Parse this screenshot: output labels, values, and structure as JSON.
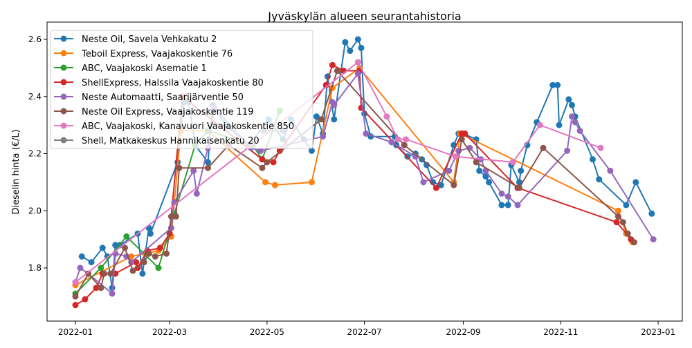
{
  "chart_data": {
    "type": "line",
    "title": "Jyväskylän alueen seurantahistoria",
    "xlabel": "",
    "ylabel": "Dieselin hinta (€/L)",
    "x_unit": "days since 2022-01-01",
    "xlim": [
      -18,
      380
    ],
    "ylim": [
      1.614,
      2.66
    ],
    "x_ticks": [
      {
        "value": 0,
        "label": "2022-01"
      },
      {
        "value": 59,
        "label": "2022-03"
      },
      {
        "value": 120,
        "label": "2022-05"
      },
      {
        "value": 181,
        "label": "2022-07"
      },
      {
        "value": 243,
        "label": "2022-09"
      },
      {
        "value": 304,
        "label": "2022-11"
      },
      {
        "value": 365,
        "label": "2023-01"
      }
    ],
    "y_ticks": [
      {
        "value": 1.8,
        "label": "1.8"
      },
      {
        "value": 2.0,
        "label": "2.0"
      },
      {
        "value": 2.2,
        "label": "2.2"
      },
      {
        "value": 2.4,
        "label": "2.4"
      },
      {
        "value": 2.6,
        "label": "2.6"
      }
    ],
    "grid": false,
    "legend_position": "top-left",
    "series": [
      {
        "name": "Neste Oil, Savela Vehkakatu 2",
        "color": "#1f77b4",
        "x": [
          4,
          10,
          17,
          20,
          23,
          25,
          28,
          39,
          42,
          46,
          47,
          64,
          68,
          71,
          75,
          83,
          86,
          94,
          109,
          121,
          130,
          135,
          143,
          148,
          151,
          155,
          158,
          162,
          169,
          172,
          177,
          179,
          181,
          185,
          200,
          201,
          208,
          213,
          217,
          220,
          224,
          229,
          237,
          240,
          243,
          251,
          253,
          257,
          259,
          267,
          271,
          273,
          278,
          279,
          283,
          289,
          299,
          302,
          303,
          309,
          311,
          313,
          324,
          328,
          345,
          351,
          361
        ],
        "y": [
          1.84,
          1.82,
          1.87,
          1.84,
          1.73,
          1.88,
          1.88,
          1.92,
          1.78,
          1.94,
          1.92,
          2.17,
          2.38,
          2.38,
          2.23,
          2.17,
          2.37,
          2.3,
          2.23,
          2.32,
          2.25,
          2.32,
          2.25,
          2.21,
          2.33,
          2.27,
          2.47,
          2.32,
          2.59,
          2.56,
          2.6,
          2.57,
          2.34,
          2.26,
          2.26,
          2.23,
          2.19,
          2.2,
          2.18,
          2.16,
          2.1,
          2.09,
          2.23,
          2.27,
          2.27,
          2.25,
          2.14,
          2.12,
          2.1,
          2.02,
          2.02,
          2.16,
          2.1,
          2.14,
          2.23,
          2.31,
          2.44,
          2.44,
          2.3,
          2.39,
          2.37,
          2.33,
          2.18,
          2.11,
          2.02,
          2.1,
          1.99
        ]
      },
      {
        "name": "Teboil Express, Vaajakoskentie 76",
        "color": "#ff7f0e",
        "x": [
          0,
          35,
          44,
          52,
          60,
          66,
          83,
          119,
          125,
          148,
          161,
          178,
          237,
          241,
          340,
          345,
          349
        ],
        "y": [
          1.74,
          1.84,
          1.85,
          1.86,
          1.91,
          2.28,
          2.28,
          2.1,
          2.09,
          2.1,
          2.43,
          2.5,
          2.1,
          2.27,
          2.0,
          1.92,
          1.89
        ]
      },
      {
        "name": "ABC, Vaajakoski Asematie 1",
        "color": "#2ca02c",
        "x": [
          0,
          16,
          32,
          52,
          62,
          75,
          83,
          111,
          117,
          128
        ],
        "y": [
          1.71,
          1.8,
          1.91,
          1.8,
          1.99,
          2.23,
          2.28,
          2.23,
          2.18,
          2.35
        ]
      },
      {
        "name": "ShellExpress, Halssila Vaajakoskentie 80",
        "color": "#d62728",
        "x": [
          0,
          6,
          13,
          17,
          25,
          38,
          39,
          45,
          53,
          59,
          67,
          117,
          124,
          128,
          157,
          161,
          168,
          178,
          179,
          226,
          242,
          244,
          277,
          339,
          348
        ],
        "y": [
          1.67,
          1.69,
          1.73,
          1.78,
          1.78,
          1.82,
          1.8,
          1.86,
          1.87,
          1.92,
          2.4,
          2.18,
          2.17,
          2.21,
          2.44,
          2.51,
          2.49,
          2.49,
          2.36,
          2.08,
          2.27,
          2.27,
          2.08,
          1.96,
          1.9
        ]
      },
      {
        "name": "Neste Automaatti, Saarijärventie 50",
        "color": "#9467bd",
        "x": [
          0,
          3,
          8,
          23,
          25,
          32,
          35,
          60,
          62,
          74,
          76,
          83,
          87,
          110,
          116,
          155,
          161,
          162,
          177,
          182,
          198,
          213,
          218,
          234,
          240,
          247,
          254,
          257,
          267,
          271,
          277,
          308,
          311,
          313,
          316,
          335,
          362
        ],
        "y": [
          1.75,
          1.8,
          1.78,
          1.71,
          1.85,
          1.84,
          1.82,
          1.94,
          2.03,
          2.14,
          2.06,
          2.22,
          2.36,
          2.22,
          2.21,
          2.26,
          2.38,
          2.37,
          2.48,
          2.27,
          2.24,
          2.19,
          2.1,
          2.14,
          2.21,
          2.22,
          2.18,
          2.14,
          2.06,
          2.05,
          2.02,
          2.21,
          2.33,
          2.31,
          2.28,
          2.14,
          1.9
        ]
      },
      {
        "name": "Neste Oil Express, Vaajakoskentie 119",
        "color": "#8c564b",
        "x": [
          0,
          8,
          16,
          18,
          22,
          31,
          36,
          43,
          46,
          50,
          57,
          60,
          63,
          65,
          83,
          96,
          117,
          120,
          154,
          164,
          206,
          237,
          242,
          251,
          278,
          293,
          340,
          343,
          346,
          350
        ],
        "y": [
          1.7,
          1.78,
          1.73,
          1.78,
          1.78,
          1.87,
          1.79,
          1.82,
          1.85,
          1.84,
          1.85,
          1.98,
          1.98,
          2.15,
          2.15,
          2.23,
          2.15,
          2.17,
          2.32,
          2.49,
          2.23,
          2.09,
          2.25,
          2.17,
          2.08,
          2.22,
          1.98,
          1.96,
          1.92,
          1.89
        ]
      },
      {
        "name": "ABC, Vaajakoski, Kanavuori Vaajakoskentie 850",
        "color": "#e377c2",
        "x": [
          0,
          177,
          195,
          202,
          207,
          238,
          274,
          291,
          329
        ],
        "y": [
          1.75,
          2.52,
          2.33,
          2.25,
          2.25,
          2.19,
          2.17,
          2.3,
          2.22
        ]
      },
      {
        "name": "Shell, Matkakeskus Hannikaisenkatu 20",
        "color": "#7f7f7f",
        "x": [
          118,
          130
        ],
        "y": [
          2.28,
          2.28
        ]
      }
    ]
  }
}
